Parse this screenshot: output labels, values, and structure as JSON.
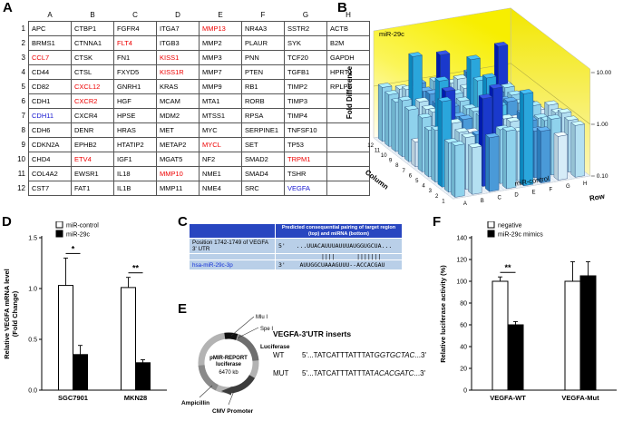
{
  "panel_labels": {
    "a": "A",
    "b": "B",
    "c": "C",
    "d": "D",
    "e": "E",
    "f": "F"
  },
  "panel_a": {
    "columns": [
      "A",
      "B",
      "C",
      "D",
      "E",
      "F",
      "G",
      "H"
    ],
    "rows": [
      {
        "n": "1",
        "cells": [
          {
            "t": "APC"
          },
          {
            "t": "CTBP1"
          },
          {
            "t": "FGFR4"
          },
          {
            "t": "ITGA7"
          },
          {
            "t": "MMP13",
            "c": "red"
          },
          {
            "t": "NR4A3"
          },
          {
            "t": "SSTR2"
          },
          {
            "t": "ACTB"
          }
        ]
      },
      {
        "n": "2",
        "cells": [
          {
            "t": "BRMS1"
          },
          {
            "t": "CTNNA1"
          },
          {
            "t": "FLT4",
            "c": "red"
          },
          {
            "t": "ITGB3"
          },
          {
            "t": "MMP2"
          },
          {
            "t": "PLAUR"
          },
          {
            "t": "SYK"
          },
          {
            "t": "B2M"
          }
        ]
      },
      {
        "n": "3",
        "cells": [
          {
            "t": "CCL7",
            "c": "red"
          },
          {
            "t": "CTSK"
          },
          {
            "t": "FN1"
          },
          {
            "t": "KISS1",
            "c": "red"
          },
          {
            "t": "MMP3"
          },
          {
            "t": "PNN"
          },
          {
            "t": "TCF20"
          },
          {
            "t": "GAPDH"
          }
        ]
      },
      {
        "n": "4",
        "cells": [
          {
            "t": "CD44"
          },
          {
            "t": "CTSL"
          },
          {
            "t": "FXYD5"
          },
          {
            "t": "KISS1R",
            "c": "red"
          },
          {
            "t": "MMP7"
          },
          {
            "t": "PTEN"
          },
          {
            "t": "TGFB1"
          },
          {
            "t": "HPRT1"
          }
        ]
      },
      {
        "n": "5",
        "cells": [
          {
            "t": "CD82"
          },
          {
            "t": "CXCL12",
            "c": "red"
          },
          {
            "t": "GNRH1"
          },
          {
            "t": "KRAS"
          },
          {
            "t": "MMP9"
          },
          {
            "t": "RB1"
          },
          {
            "t": "TIMP2"
          },
          {
            "t": "RPLP0"
          }
        ]
      },
      {
        "n": "6",
        "cells": [
          {
            "t": "CDH1"
          },
          {
            "t": "CXCR2",
            "c": "red"
          },
          {
            "t": "HGF"
          },
          {
            "t": "MCAM"
          },
          {
            "t": "MTA1"
          },
          {
            "t": "RORB"
          },
          {
            "t": "TIMP3"
          },
          {
            "t": ""
          }
        ]
      },
      {
        "n": "7",
        "cells": [
          {
            "t": "CDH11",
            "c": "blue"
          },
          {
            "t": "CXCR4"
          },
          {
            "t": "HPSE"
          },
          {
            "t": "MDM2"
          },
          {
            "t": "MTSS1"
          },
          {
            "t": "RPSA"
          },
          {
            "t": "TIMP4"
          },
          {
            "t": ""
          }
        ]
      },
      {
        "n": "8",
        "cells": [
          {
            "t": "CDH6"
          },
          {
            "t": "DENR"
          },
          {
            "t": "HRAS"
          },
          {
            "t": "MET"
          },
          {
            "t": "MYC"
          },
          {
            "t": "SERPINE1"
          },
          {
            "t": "TNFSF10"
          },
          {
            "t": ""
          }
        ]
      },
      {
        "n": "9",
        "cells": [
          {
            "t": "CDKN2A"
          },
          {
            "t": "EPHB2"
          },
          {
            "t": "HTATIP2"
          },
          {
            "t": "METAP2"
          },
          {
            "t": "MYCL",
            "c": "red"
          },
          {
            "t": "SET"
          },
          {
            "t": "TP53"
          },
          {
            "t": ""
          }
        ]
      },
      {
        "n": "10",
        "cells": [
          {
            "t": "CHD4"
          },
          {
            "t": "ETV4",
            "c": "red"
          },
          {
            "t": "IGF1"
          },
          {
            "t": "MGAT5"
          },
          {
            "t": "NF2"
          },
          {
            "t": "SMAD2"
          },
          {
            "t": "TRPM1",
            "c": "red"
          },
          {
            "t": ""
          }
        ]
      },
      {
        "n": "11",
        "cells": [
          {
            "t": "COL4A2"
          },
          {
            "t": "EWSR1"
          },
          {
            "t": "IL18"
          },
          {
            "t": "MMP10",
            "c": "red"
          },
          {
            "t": "NME1"
          },
          {
            "t": "SMAD4"
          },
          {
            "t": "TSHR"
          },
          {
            "t": ""
          }
        ]
      },
      {
        "n": "12",
        "cells": [
          {
            "t": "CST7"
          },
          {
            "t": "FAT1"
          },
          {
            "t": "IL1B"
          },
          {
            "t": "MMP11"
          },
          {
            "t": "NME4"
          },
          {
            "t": "SRC"
          },
          {
            "t": "VEGFA",
            "c": "blue"
          },
          {
            "t": ""
          }
        ]
      }
    ]
  },
  "chart_data": [
    {
      "id": "panel_b",
      "type": "bar3d",
      "zlabel": "Fold Difference",
      "xlabel": "Column",
      "ylabel": "Row",
      "columns": [
        12,
        11,
        10,
        9,
        8,
        7,
        6,
        5,
        4,
        3,
        2,
        1
      ],
      "rows": [
        "A",
        "B",
        "C",
        "D",
        "E",
        "F",
        "G",
        "H"
      ],
      "zticks": [
        "10.00",
        "1.00",
        "0.10"
      ],
      "zlim": [
        0.1,
        10
      ],
      "zscale": "log",
      "annotations": {
        "top": "miR-29c",
        "bottom": "miR-control"
      },
      "values": [
        [
          1.0,
          0.8,
          1.1,
          1.3,
          6.0,
          1.0,
          0.7,
          1.0
        ],
        [
          0.9,
          1.0,
          5.0,
          1.1,
          0.9,
          0.8,
          1.2,
          1.0
        ],
        [
          4.5,
          1.0,
          0.8,
          5.5,
          1.1,
          1.0,
          0.9,
          1.1
        ],
        [
          1.0,
          1.2,
          0.7,
          7.0,
          1.0,
          1.1,
          0.8,
          0.9
        ],
        [
          0.8,
          4.0,
          1.0,
          1.0,
          1.4,
          0.7,
          1.1,
          1.0
        ],
        [
          1.1,
          5.0,
          0.9,
          1.0,
          0.8,
          1.2,
          1.0,
          0.4
        ],
        [
          0.3,
          1.0,
          1.1,
          0.9,
          1.0,
          1.0,
          0.8,
          0.5
        ],
        [
          1.0,
          0.9,
          1.3,
          1.0,
          2.2,
          1.1,
          0.9,
          0.5
        ],
        [
          1.2,
          1.0,
          0.8,
          1.1,
          4.5,
          1.0,
          1.0,
          0.6
        ],
        [
          0.9,
          6.0,
          1.0,
          0.8,
          1.0,
          0.9,
          5.0,
          0.5
        ],
        [
          1.0,
          1.1,
          0.9,
          4.0,
          1.2,
          1.0,
          0.7,
          0.4
        ],
        [
          1.1,
          0.9,
          1.0,
          1.0,
          0.8,
          1.1,
          0.2,
          0.5
        ]
      ]
    },
    {
      "id": "panel_d",
      "type": "bar",
      "categories": [
        "SGC7901",
        "MKN28"
      ],
      "series": [
        {
          "name": "miR-control",
          "fill": "#ffffff",
          "values": [
            1.03,
            1.01
          ],
          "errors": [
            0.27,
            0.1
          ]
        },
        {
          "name": "miR-29c",
          "fill": "#000000",
          "values": [
            0.35,
            0.27
          ],
          "errors": [
            0.09,
            0.03
          ]
        }
      ],
      "ylabel_lines": [
        "Relative VEGFA mRNA level",
        "(Fold Change)"
      ],
      "ylim": [
        0,
        1.5
      ],
      "yticks": [
        "0.0",
        "0.5",
        "1.0",
        "1.5"
      ],
      "significance": [
        {
          "category": "SGC7901",
          "label": "*"
        },
        {
          "category": "MKN28",
          "label": "**"
        }
      ]
    },
    {
      "id": "panel_f",
      "type": "bar",
      "categories": [
        "VEGFA-WT",
        "VEGFA-Mut"
      ],
      "series": [
        {
          "name": "negative",
          "fill": "#ffffff",
          "values": [
            100,
            100
          ],
          "errors": [
            4,
            18
          ]
        },
        {
          "name": "miR-29c mimics",
          "fill": "#000000",
          "values": [
            60,
            105
          ],
          "errors": [
            3,
            13
          ]
        }
      ],
      "ylabel_lines": [
        "Relative luciferase activity (%)"
      ],
      "ylim": [
        0,
        140
      ],
      "yticks": [
        "0",
        "20",
        "40",
        "60",
        "80",
        "100",
        "120",
        "140"
      ],
      "significance": [
        {
          "category": "VEGFA-WT",
          "label": "**"
        }
      ]
    }
  ],
  "panel_c": {
    "header": "Predicted consequential pairing of target region (top) and miRNA (bottom)",
    "row1_label": "Position 1742-1749 of VEGFA 3' UTR",
    "row1_seq": "5'   ...UUACAUUUAUUUAUGGUGCUA...",
    "pairing": "            ||||      |||||||",
    "row2_label": "hsa-miR-29c-3p",
    "row2_seq": "3'    AUUGGCUAAAGUUU--ACCACGAU"
  },
  "panel_e": {
    "enzyme1": "Mlu I",
    "enzyme2": "Spe I",
    "luciferase_label": "Luciferase",
    "plasmid_name_line1": "pMIR-REPORT",
    "plasmid_name_line2": "luciferase",
    "plasmid_size": "6470 kb",
    "ampicillin_label": "Ampicillin",
    "promoter_label": "CMV Promoter",
    "inserts_title": "VEGFA-3'UTR inserts",
    "wt_label": "WT",
    "wt_prefix": "5'...TATCATTTATTTAT",
    "wt_italic": "GGTGCTAC",
    "wt_suffix": "...3'",
    "mut_label": "MUT",
    "mut_prefix": "5'...TATCATTTATTTAT",
    "mut_italic": "ACACGATC",
    "mut_suffix": "...3'"
  }
}
